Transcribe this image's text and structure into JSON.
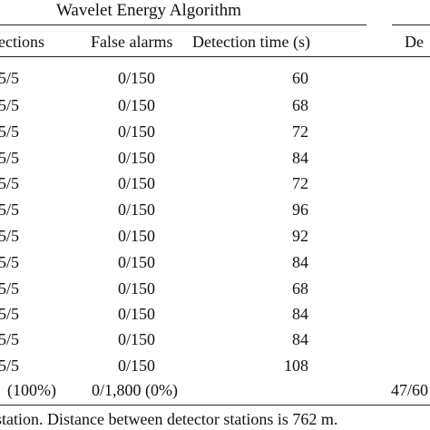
{
  "table": {
    "group_title": "Wavelet Energy Algorithm",
    "headers": {
      "detections": "ections",
      "false_alarms": "False alarms",
      "detection_time": "Detection time (s)",
      "next_group": "De"
    },
    "rows": [
      {
        "detections": "5/5",
        "false_alarms": "0/150",
        "time": "60"
      },
      {
        "detections": "5/5",
        "false_alarms": "0/150",
        "time": "68"
      },
      {
        "detections": "5/5",
        "false_alarms": "0/150",
        "time": "72"
      },
      {
        "detections": "5/5",
        "false_alarms": "0/150",
        "time": "84"
      },
      {
        "detections": "5/5",
        "false_alarms": "0/150",
        "time": "72"
      },
      {
        "detections": "5/5",
        "false_alarms": "0/150",
        "time": "96"
      },
      {
        "detections": "5/5",
        "false_alarms": "0/150",
        "time": "92"
      },
      {
        "detections": "5/5",
        "false_alarms": "0/150",
        "time": "84"
      },
      {
        "detections": "5/5",
        "false_alarms": "0/150",
        "time": "68"
      },
      {
        "detections": "5/5",
        "false_alarms": "0/150",
        "time": "84"
      },
      {
        "detections": "5/5",
        "false_alarms": "0/150",
        "time": "84"
      },
      {
        "detections": "5/5",
        "false_alarms": "0/150",
        "time": "108"
      }
    ],
    "total": {
      "detections": "(100%)",
      "false_alarms": "0/1,800 (0%)",
      "next_group": "47/60"
    },
    "footnote": "station. Distance between detector stations is 762 m."
  }
}
